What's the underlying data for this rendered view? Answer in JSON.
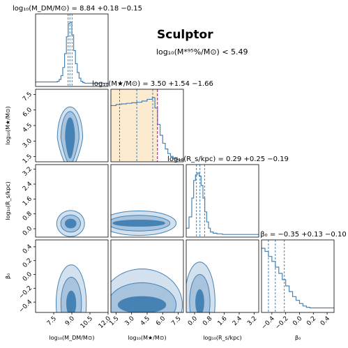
{
  "chart_data": {
    "type": "corner",
    "title": "Sculptor",
    "subtitle": "log₁₀(M*⁹⁵%/M⊙) < 5.49",
    "colors": {
      "hist": "#4682b4",
      "contour_outer": "#d3e1ee",
      "contour_mid": "#a7c3dd",
      "contour_inner": "#4682b4",
      "prior_band": "#fdebd0",
      "limit_line": "#ff00ff"
    },
    "parameters": [
      {
        "name": "log10_M_DM",
        "label": "log₁₀(M_DM/M⊙)",
        "title": "log₁₀(M_DM/M⊙) = 8.84 +0.18 −0.15",
        "range": [
          6.0,
          12.0
        ],
        "ticks": [
          7.5,
          9.0,
          10.5,
          12.0
        ],
        "tick_labels": [
          "7.5",
          "9.0",
          "10.5",
          "12.0"
        ],
        "quantiles": [
          8.69,
          8.84,
          9.02
        ]
      },
      {
        "name": "log10_Mstar",
        "label": "log₁₀(M★/M⊙)",
        "title": "log₁₀(M★/M⊙) = 3.50 +1.54 −1.66",
        "range": [
          1.0,
          8.0
        ],
        "ticks": [
          1.5,
          3.0,
          4.5,
          6.0,
          7.5
        ],
        "tick_labels": [
          "1.5",
          "3.0",
          "4.5",
          "6.0",
          "7.5"
        ],
        "quantiles": [
          1.84,
          3.5,
          5.04
        ],
        "upper_limit": 5.49,
        "prior_band": [
          1.0,
          5.49
        ]
      },
      {
        "name": "log10_Rs",
        "label": "log₁₀(R_s/kpc)",
        "title": "log₁₀(R_s/kpc) = 0.29 +0.25 −0.19",
        "range": [
          -0.45,
          3.45
        ],
        "ticks": [
          0.0,
          0.8,
          1.6,
          2.4,
          3.2
        ],
        "tick_labels": [
          "0.0",
          "0.8",
          "1.6",
          "2.4",
          "3.2"
        ],
        "quantiles": [
          0.1,
          0.29,
          0.54
        ]
      },
      {
        "name": "beta0",
        "label": "β₀",
        "title": "β₀ = −0.35 +0.13 −0.10",
        "range": [
          -0.55,
          0.5
        ],
        "ticks": [
          -0.4,
          -0.2,
          0.0,
          0.2,
          0.4
        ],
        "tick_labels": [
          "−0.4",
          "−0.2",
          "0.0",
          "0.2",
          "0.4"
        ],
        "quantiles": [
          -0.45,
          -0.35,
          -0.22
        ]
      }
    ],
    "y_axis_ticks": {
      "log10_Mstar": {
        "ticks": [
          1.5,
          3.0,
          4.5,
          6.0,
          7.5
        ],
        "labels": [
          "1.5",
          "3.0",
          "4.5",
          "6.0",
          "7.5"
        ]
      },
      "log10_Rs": {
        "ticks": [
          0.0,
          0.8,
          1.6,
          2.4,
          3.2
        ],
        "labels": [
          "0.0",
          "0.8",
          "1.6",
          "2.4",
          "3.2"
        ]
      },
      "beta0": {
        "ticks": [
          -0.4,
          -0.2,
          0.0,
          0.2,
          0.4
        ],
        "labels": [
          "−0.4",
          "−0.2",
          "0.0",
          "0.2",
          "0.4"
        ]
      }
    },
    "histograms": {
      "log10_M_DM": {
        "bin_edges": [
          6.0,
          7.8,
          7.95,
          8.1,
          8.25,
          8.4,
          8.55,
          8.7,
          8.85,
          9.0,
          9.15,
          9.3,
          9.45,
          9.6,
          9.75,
          9.9,
          10.05,
          12.0
        ],
        "heights": [
          0.05,
          0.06,
          0.09,
          0.15,
          0.28,
          0.5,
          0.77,
          0.98,
          1.0,
          0.8,
          0.55,
          0.34,
          0.2,
          0.11,
          0.06,
          0.04,
          0.03
        ]
      },
      "log10_Mstar": {
        "bin_edges": [
          1.0,
          1.5,
          2.0,
          2.5,
          3.0,
          3.5,
          4.0,
          4.5,
          5.0,
          5.25,
          5.5,
          5.75,
          6.0,
          6.25,
          6.5,
          6.75,
          7.0,
          7.25,
          7.5,
          8.0
        ],
        "heights": [
          0.96,
          0.98,
          0.99,
          1.0,
          1.01,
          1.02,
          1.04,
          1.07,
          1.1,
          0.92,
          0.63,
          0.44,
          0.3,
          0.2,
          0.12,
          0.07,
          0.04,
          0.02,
          0.01
        ]
      },
      "log10_Rs": {
        "bin_edges": [
          -0.45,
          -0.3,
          -0.15,
          -0.05,
          0.05,
          0.15,
          0.25,
          0.35,
          0.45,
          0.55,
          0.65,
          0.75,
          0.85,
          1.0,
          1.2,
          1.5,
          2.0,
          3.45
        ],
        "heights": [
          0.12,
          0.3,
          0.6,
          0.88,
          0.97,
          1.0,
          0.95,
          0.8,
          0.6,
          0.38,
          0.22,
          0.12,
          0.06,
          0.04,
          0.03,
          0.02,
          0.02
        ]
      },
      "beta0": {
        "bin_edges": [
          -0.55,
          -0.5,
          -0.45,
          -0.4,
          -0.35,
          -0.3,
          -0.25,
          -0.2,
          -0.15,
          -0.1,
          -0.05,
          0.0,
          0.05,
          0.1,
          0.15,
          0.2,
          0.5
        ],
        "heights": [
          1.0,
          0.95,
          0.87,
          0.79,
          0.7,
          0.6,
          0.5,
          0.4,
          0.31,
          0.23,
          0.17,
          0.12,
          0.08,
          0.06,
          0.05,
          0.05
        ]
      }
    },
    "contours_2d": [
      {
        "x": "log10_M_DM",
        "y": "log10_Mstar",
        "center": [
          8.85,
          3.3
        ],
        "levels": [
          {
            "sx": 1.05,
            "sy": 3.0,
            "ryoff": 1.1,
            "rfac": 0.62
          },
          {
            "sx": 0.75,
            "sy": 2.55,
            "ryoff": 0.9,
            "rfac": 0.6
          },
          {
            "sx": 0.38,
            "sy": 1.95,
            "ryoff": 0.6,
            "rfac": 0.65
          }
        ]
      },
      {
        "x": "log10_M_DM",
        "y": "log10_Rs",
        "center": [
          8.9,
          0.28
        ],
        "levels": [
          {
            "sx": 1.15,
            "sy": 0.7,
            "ryoff": 0.0,
            "rfac": 1.0
          },
          {
            "sx": 0.82,
            "sy": 0.46,
            "ryoff": 0.0,
            "rfac": 1.0
          },
          {
            "sx": 0.45,
            "sy": 0.24,
            "ryoff": 0.0,
            "rfac": 1.0
          }
        ]
      },
      {
        "x": "log10_M_DM",
        "y": "beta0",
        "center": [
          8.95,
          -0.42
        ],
        "levels": [
          {
            "sx": 1.25,
            "sy": 0.56,
            "ryoff": 0.0,
            "rfac": 1.0
          },
          {
            "sx": 0.85,
            "sy": 0.38,
            "ryoff": 0.0,
            "rfac": 1.0
          },
          {
            "sx": 0.38,
            "sy": 0.18,
            "ryoff": 0.0,
            "rfac": 1.0
          }
        ]
      },
      {
        "x": "log10_Mstar",
        "y": "log10_Rs",
        "center": [
          3.7,
          0.3
        ],
        "levels": [
          {
            "sx": 3.6,
            "sy": 0.66,
            "ryoff": 0.0,
            "rfac": 1.0
          },
          {
            "sx": 3.0,
            "sy": 0.42,
            "ryoff": 0.0,
            "rfac": 1.0
          },
          {
            "sx": 2.5,
            "sy": 0.17,
            "ryoff": 0.0,
            "rfac": 1.0
          }
        ]
      },
      {
        "x": "log10_Mstar",
        "y": "beta0",
        "center": [
          4.0,
          -0.44
        ],
        "levels": [
          {
            "sx": 3.9,
            "sy": 0.52,
            "ryoff": 0.0,
            "rfac": 1.0
          },
          {
            "sx": 3.3,
            "sy": 0.32,
            "ryoff": 0.0,
            "rfac": 1.0
          },
          {
            "sx": 2.3,
            "sy": 0.12,
            "ryoff": 0.0,
            "rfac": 1.0
          }
        ]
      },
      {
        "x": "log10_Rs",
        "y": "beta0",
        "center": [
          0.28,
          -0.4
        ],
        "levels": [
          {
            "sx": 0.82,
            "sy": 0.58,
            "ryoff": 0.0,
            "rfac": 1.0
          },
          {
            "sx": 0.55,
            "sy": 0.4,
            "ryoff": 0.0,
            "rfac": 1.0
          },
          {
            "sx": 0.22,
            "sy": 0.18,
            "ryoff": 0.0,
            "rfac": 1.0
          }
        ]
      }
    ]
  }
}
